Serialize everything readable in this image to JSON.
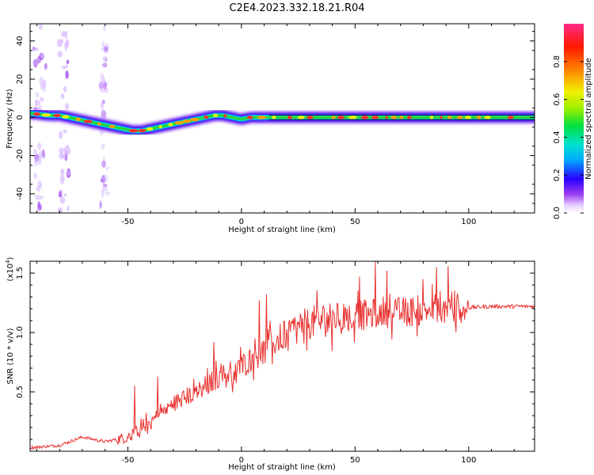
{
  "title": "C2E4.2023.332.18.21.R04",
  "chart_data": [
    {
      "type": "heatmap",
      "xlabel": "Height of straight line (km)",
      "ylabel": "Frequency (Hz)",
      "xlim": [
        -93,
        129
      ],
      "ylim": [
        -50,
        49
      ],
      "xticks": [
        -50,
        0,
        50,
        100
      ],
      "yticks": [
        -40,
        -20,
        0,
        20,
        40
      ],
      "ridge": {
        "x": [
          -92,
          -88,
          -84,
          -80,
          -76,
          -72,
          -68,
          -64,
          -60,
          -56,
          -52,
          -48,
          -44,
          -40,
          -36,
          -32,
          -28,
          -24,
          -20,
          -16,
          -12,
          -8,
          -4,
          0,
          4,
          8,
          12,
          20,
          40,
          60,
          80,
          100,
          129
        ],
        "freq_hz": [
          2,
          1.5,
          1,
          1,
          0,
          -1,
          -2,
          -3,
          -4,
          -5,
          -6,
          -7,
          -7,
          -6,
          -5,
          -4,
          -3,
          -2,
          -1,
          0,
          1,
          1,
          0,
          -1,
          0,
          0,
          0,
          0,
          0,
          0,
          0,
          0,
          0
        ]
      },
      "colorbar": {
        "label": "Normalized spectral amplitude",
        "range": [
          0,
          1
        ],
        "ticks": [
          "0.0",
          "0.2",
          "0.4",
          "0.6",
          "0.8"
        ]
      }
    },
    {
      "type": "line",
      "xlabel": "Height of straight line (km)",
      "ylabel": "SNR (10 * v/v)",
      "yexp_label": "(x10",
      "yexp_sup": "4",
      "yexp_close": ")",
      "xlim": [
        -93,
        129
      ],
      "ylim": [
        0,
        1.6
      ],
      "xticks": [
        -50,
        0,
        50,
        100
      ],
      "yticks": [
        "0.5",
        "1.0",
        "1.5"
      ],
      "color": "#e8312f",
      "trend": {
        "x": [
          -93,
          -80,
          -70,
          -60,
          -50,
          -40,
          -30,
          -20,
          -10,
          0,
          10,
          20,
          30,
          40,
          50,
          60,
          70,
          80,
          90,
          100,
          110,
          120,
          129
        ],
        "y": [
          0.03,
          0.05,
          0.12,
          0.08,
          0.12,
          0.25,
          0.4,
          0.5,
          0.62,
          0.72,
          0.85,
          1.0,
          1.08,
          1.12,
          1.14,
          1.16,
          1.17,
          1.19,
          1.2,
          1.21,
          1.22,
          1.22,
          1.22
        ]
      },
      "peaks": [
        {
          "x": -47,
          "y": 0.55
        },
        {
          "x": -37,
          "y": 0.63
        },
        {
          "x": -12,
          "y": 0.92
        },
        {
          "x": 8,
          "y": 1.27
        },
        {
          "x": 11,
          "y": 1.32
        },
        {
          "x": 52,
          "y": 1.47
        },
        {
          "x": 59,
          "y": 1.6
        },
        {
          "x": 64,
          "y": 1.52
        },
        {
          "x": 80,
          "y": 1.45
        },
        {
          "x": 86,
          "y": 1.55
        },
        {
          "x": 91,
          "y": 1.56
        }
      ]
    }
  ]
}
